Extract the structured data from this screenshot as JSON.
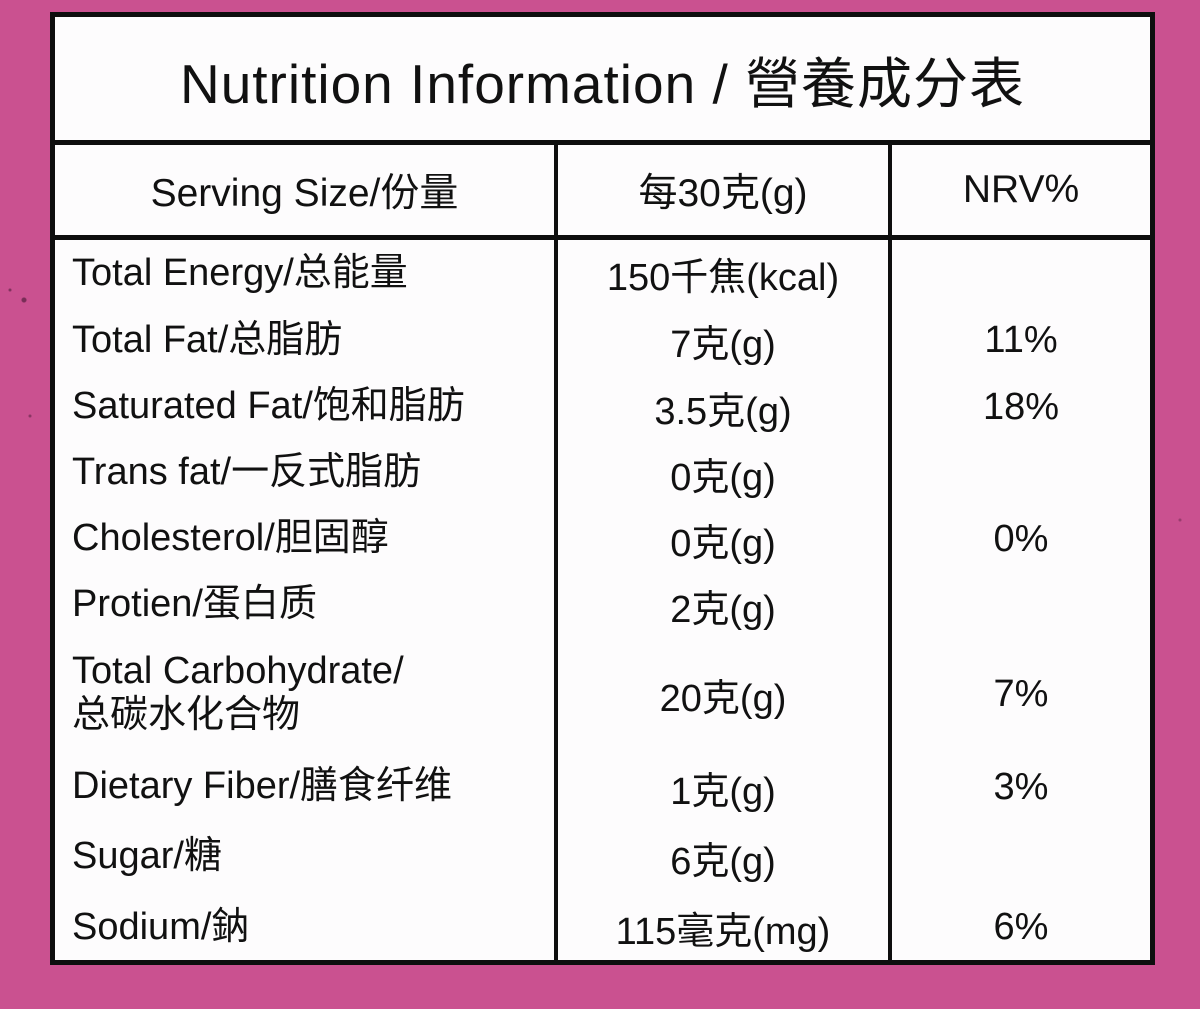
{
  "title": "Nutrition Information / 營養成分表",
  "header": {
    "serving_size": "Serving Size/份量",
    "per_amount": "每30克(g)",
    "nrv": "NRV%"
  },
  "rows": [
    {
      "label": "Total Energy/总能量",
      "label2": "",
      "value": "150千焦(kcal)",
      "nrv": ""
    },
    {
      "label": "Total Fat/总脂肪",
      "label2": "",
      "value": "7克(g)",
      "nrv": "11%"
    },
    {
      "label": "Saturated Fat/饱和脂肪",
      "label2": "",
      "value": "3.5克(g)",
      "nrv": "18%"
    },
    {
      "label": "Trans fat/一反式脂肪",
      "label2": "",
      "value": "0克(g)",
      "nrv": ""
    },
    {
      "label": "Cholesterol/胆固醇",
      "label2": "",
      "value": "0克(g)",
      "nrv": "0%"
    },
    {
      "label": "Protien/蛋白质",
      "label2": "",
      "value": "2克(g)",
      "nrv": ""
    },
    {
      "label": "Total Carbohydrate/",
      "label2": "总碳水化合物",
      "value": "20克(g)",
      "nrv": "7%"
    },
    {
      "label": "Dietary Fiber/膳食纤维",
      "label2": "",
      "value": "1克(g)",
      "nrv": "3%"
    },
    {
      "label": "Sugar/糖",
      "label2": "",
      "value": "6克(g)",
      "nrv": ""
    },
    {
      "label": "Sodium/鈉",
      "label2": "",
      "value": "115毫克(mg)",
      "nrv": "6%"
    }
  ],
  "colors": {
    "background_pink": "#ca5190",
    "table_background": "#fdfcfd",
    "border_black": "#0e0e0e",
    "text_black": "#111111"
  }
}
